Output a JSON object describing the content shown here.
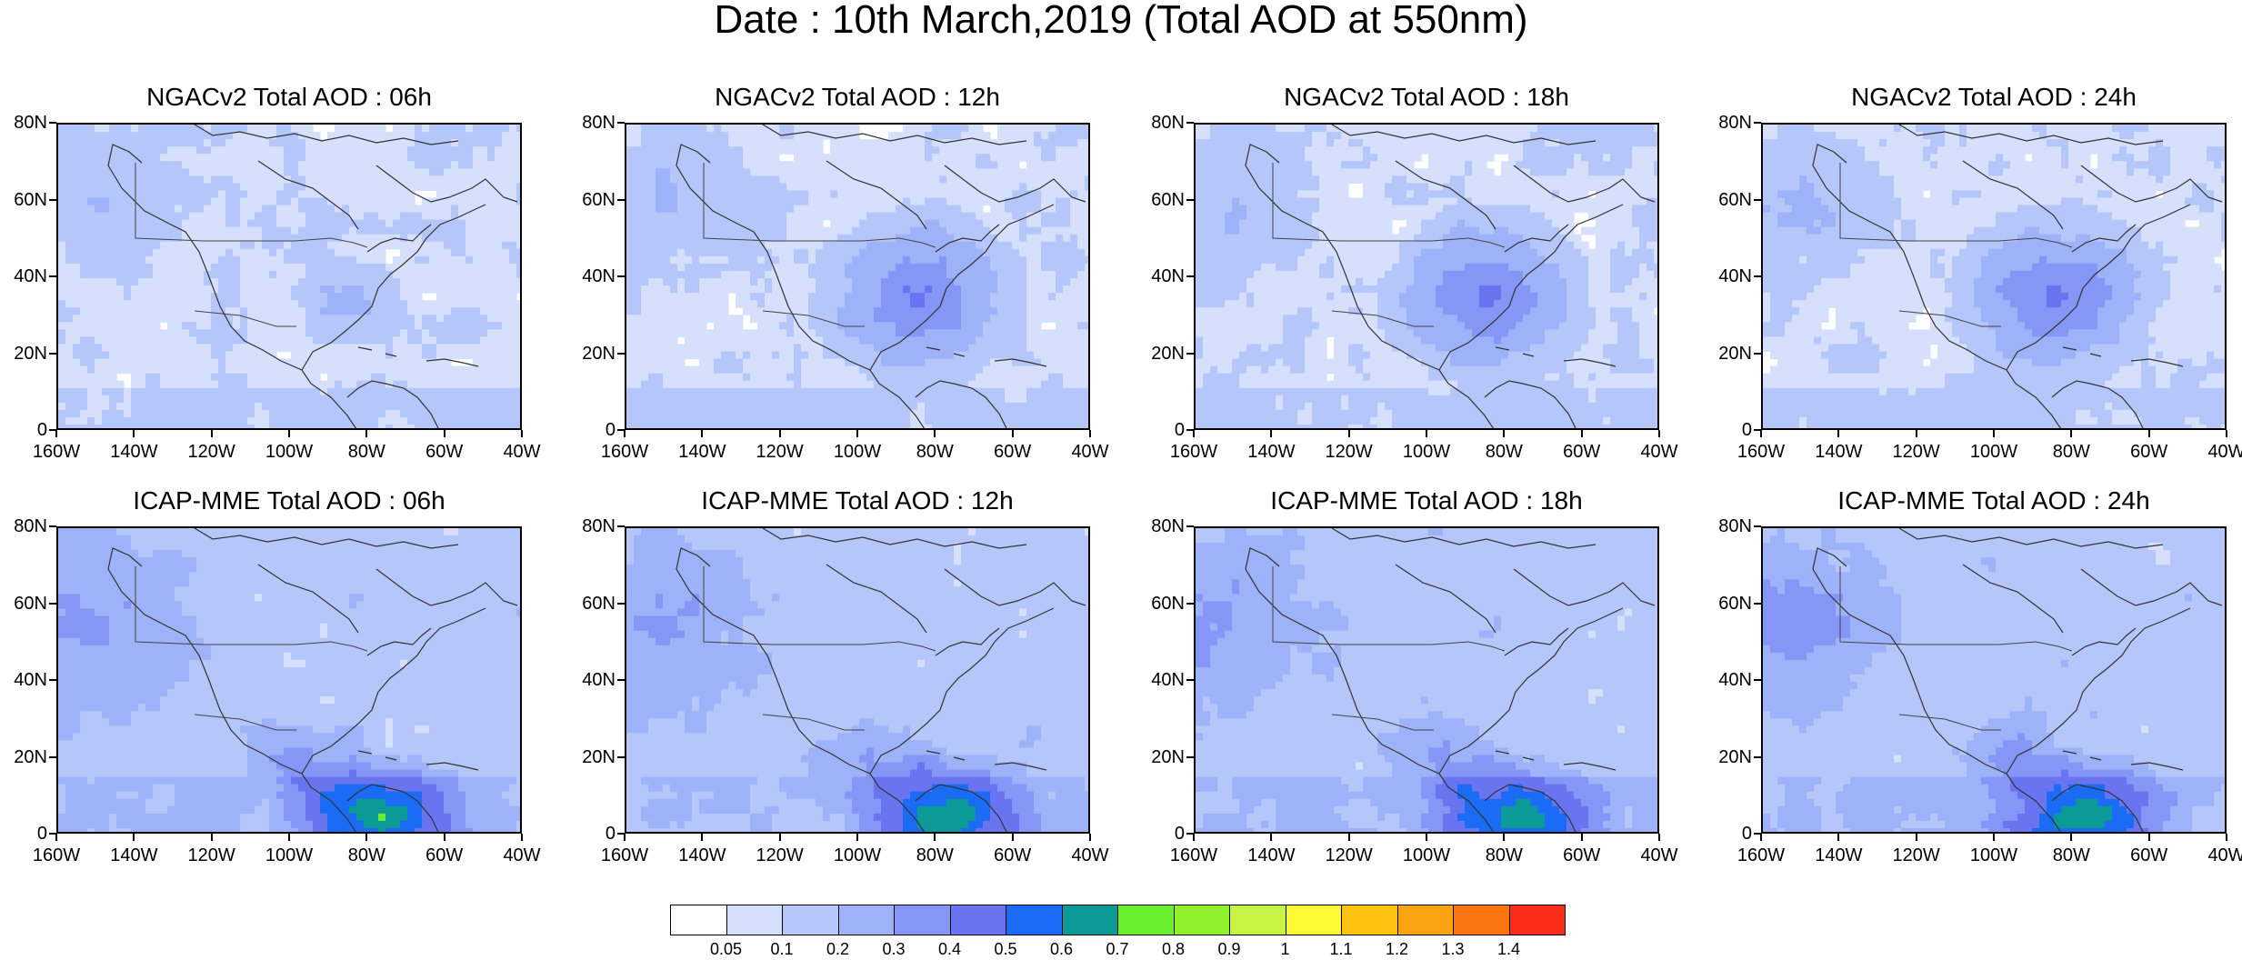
{
  "title": "Date : 10th March,2019 (Total AOD at 550nm)",
  "panels": [
    {
      "title": "NGACv2 Total AOD : 06h",
      "model": "ngac",
      "hour": 6
    },
    {
      "title": "NGACv2 Total AOD : 12h",
      "model": "ngac",
      "hour": 12
    },
    {
      "title": "NGACv2 Total AOD : 18h",
      "model": "ngac",
      "hour": 18
    },
    {
      "title": "NGACv2 Total AOD : 24h",
      "model": "ngac",
      "hour": 24
    },
    {
      "title": "ICAP-MME Total AOD : 06h",
      "model": "icap",
      "hour": 6
    },
    {
      "title": "ICAP-MME Total AOD : 12h",
      "model": "icap",
      "hour": 12
    },
    {
      "title": "ICAP-MME Total AOD : 18h",
      "model": "icap",
      "hour": 18
    },
    {
      "title": "ICAP-MME Total AOD : 24h",
      "model": "icap",
      "hour": 24
    }
  ],
  "lat_ticks": [
    "80N",
    "60N",
    "40N",
    "20N",
    "0"
  ],
  "lon_ticks": [
    "160W",
    "140W",
    "120W",
    "100W",
    "80W",
    "60W",
    "40W"
  ],
  "colorbar": {
    "labels": [
      "0.05",
      "0.1",
      "0.2",
      "0.3",
      "0.4",
      "0.5",
      "0.6",
      "0.7",
      "0.8",
      "0.9",
      "1",
      "1.1",
      "1.2",
      "1.3",
      "1.4"
    ],
    "colors": [
      "#ffffff",
      "#d6e0fd",
      "#b5c6fb",
      "#9db2f9",
      "#8596f6",
      "#6a74f0",
      "#1a6cf6",
      "#0c9a96",
      "#68f02d",
      "#8ef12c",
      "#c6f344",
      "#fef935",
      "#fcc20f",
      "#fba413",
      "#fb7611",
      "#fb2d17"
    ]
  }
}
